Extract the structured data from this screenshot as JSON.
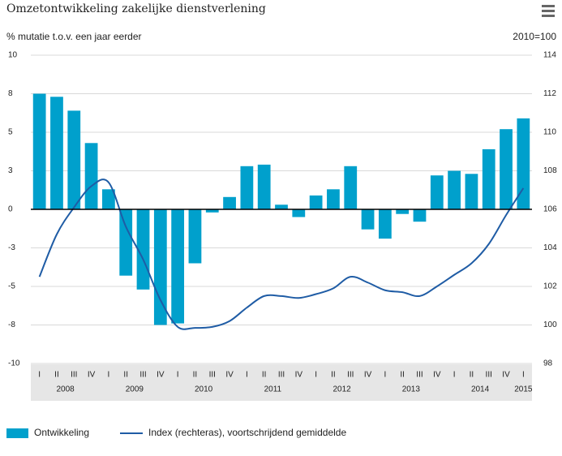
{
  "chart_data": {
    "type": "bar",
    "title": "Omzetontwikkeling zakelijke dienstverlening",
    "y_label": "% mutatie t.o.v. een jaar eerder",
    "y2_label": "2010=100",
    "categories": [
      "I",
      "II",
      "III",
      "IV",
      "I",
      "II",
      "III",
      "IV",
      "I",
      "II",
      "III",
      "IV",
      "I",
      "II",
      "III",
      "IV",
      "I",
      "II",
      "III",
      "IV",
      "I",
      "II",
      "III",
      "IV",
      "I",
      "II",
      "III",
      "IV",
      "I"
    ],
    "year_labels": [
      "2008",
      "2009",
      "2010",
      "2011",
      "2012",
      "2013",
      "2014",
      "2015"
    ],
    "series": [
      {
        "name": "Ontwikkeling",
        "type": "bar",
        "color": "#00a0cc",
        "values": [
          7.5,
          7.3,
          6.4,
          4.3,
          1.3,
          -4.3,
          -5.2,
          -7.5,
          -7.4,
          -3.5,
          -0.2,
          0.8,
          2.8,
          2.9,
          0.3,
          -0.5,
          0.9,
          1.3,
          2.8,
          -1.3,
          -1.9,
          -0.3,
          -0.8,
          2.2,
          2.5,
          2.3,
          3.9,
          5.2,
          5.9
        ]
      },
      {
        "name": "Index (rechteras), voortschrijdend gemiddelde",
        "type": "line",
        "axis": "y2",
        "color": "#1f5ca5",
        "values": [
          102.5,
          104.7,
          106.1,
          107.2,
          107.4,
          105.1,
          103.4,
          101.3,
          99.9,
          99.85,
          99.9,
          100.2,
          100.9,
          101.5,
          101.5,
          101.4,
          101.6,
          101.9,
          102.5,
          102.2,
          101.8,
          101.7,
          101.5,
          102.0,
          102.6,
          103.2,
          104.2,
          105.7,
          107.1
        ]
      }
    ],
    "ylim": [
      -10,
      10
    ],
    "yticks": [
      10,
      {
        "value": 7.5,
        "label": "8"
      },
      5,
      {
        "value": 2.5,
        "label": "3"
      },
      0,
      {
        "value": -2.5,
        "label": "-3"
      },
      -5,
      {
        "value": -7.5,
        "label": "-8"
      },
      -10
    ],
    "y2lim": [
      98,
      114
    ],
    "y2ticks": [
      98,
      100,
      102,
      104,
      106,
      108,
      110,
      112,
      114
    ],
    "grid": true
  }
}
